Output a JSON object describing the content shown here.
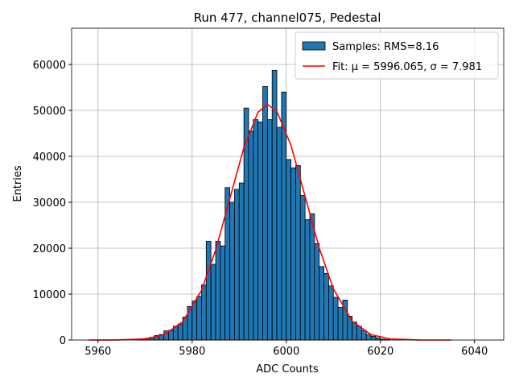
{
  "chart_data": {
    "type": "histogram",
    "title": "Run 477, channel075, Pedestal",
    "xlabel": "ADC Counts",
    "ylabel": "Entries",
    "xlim": [
      5954.4,
      6046.2
    ],
    "ylim": [
      0,
      67900
    ],
    "xticks": [
      5960,
      5980,
      6000,
      6020,
      6040
    ],
    "yticks": [
      0,
      10000,
      20000,
      30000,
      40000,
      50000,
      60000
    ],
    "grid": true,
    "legend": "upper right",
    "series": [
      {
        "name": "Samples: RMS=8.16",
        "type": "histogram",
        "color": "#1f77b4",
        "bins": [
          5969,
          5970,
          5971,
          5972,
          5973,
          5974,
          5975,
          5976,
          5977,
          5978,
          5979,
          5980,
          5981,
          5982,
          5983,
          5984,
          5985,
          5986,
          5987,
          5988,
          5989,
          5990,
          5991,
          5992,
          5993,
          5994,
          5995,
          5996,
          5997,
          5998,
          5999,
          6000,
          6001,
          6002,
          6003,
          6004,
          6005,
          6006,
          6007,
          6008,
          6009,
          6010,
          6011,
          6012,
          6013,
          6014,
          6015,
          6016,
          6017,
          6018,
          6019,
          6020,
          6021,
          6022
        ],
        "values": [
          200,
          400,
          600,
          1000,
          1200,
          2000,
          2100,
          3000,
          3500,
          5000,
          7300,
          8500,
          9500,
          12000,
          21500,
          16500,
          21500,
          20500,
          33200,
          30000,
          32800,
          34200,
          50500,
          45500,
          48000,
          47500,
          55200,
          48000,
          58700,
          46300,
          54000,
          39300,
          37500,
          38000,
          31500,
          26200,
          27500,
          21000,
          16000,
          14500,
          11800,
          9300,
          7100,
          8700,
          5200,
          3900,
          3000,
          2100,
          1200,
          800,
          500,
          200,
          100
        ]
      },
      {
        "name": "Fit: μ = 5996.065, σ = 7.981",
        "type": "line",
        "color": "#ff0000",
        "x": [
          5958,
          5964,
          5970,
          5974,
          5978,
          5982,
          5985,
          5988,
          5991,
          5994,
          5996,
          5998,
          6001,
          6004,
          6007,
          6010,
          6014,
          6018,
          6022,
          6028,
          6035
        ],
        "values": [
          1,
          16,
          248,
          1125,
          3954,
          10845,
          19600,
          30770,
          41930,
          49610,
          51300,
          49810,
          42380,
          31300,
          20060,
          11180,
          4104,
          1175,
          262,
          17,
          0
        ]
      }
    ]
  }
}
